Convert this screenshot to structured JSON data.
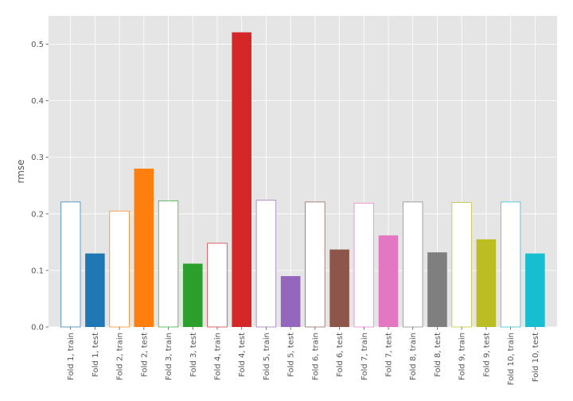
{
  "chart_data": {
    "type": "bar",
    "ylabel": "rmse",
    "xlabel": "",
    "ylim": [
      0,
      0.55
    ],
    "grid": true,
    "yticks": [
      "0.0",
      "0.1",
      "0.2",
      "0.3",
      "0.4",
      "0.5"
    ],
    "categories": [
      "Fold 1, train",
      "Fold 1, test",
      "Fold 2, train",
      "Fold 2, test",
      "Fold 3, train",
      "Fold 3, test",
      "Fold 4, train",
      "Fold 4, test",
      "Fold 5, train",
      "Fold 5, test",
      "Fold 6, train",
      "Fold 6, test",
      "Fold 7, train",
      "Fold 7, test",
      "Fold 8, train",
      "Fold 8, test",
      "Fold 9, train",
      "Fold 9, test",
      "Fold 10, train",
      "Fold 10, test"
    ],
    "values": [
      0.221,
      0.13,
      0.205,
      0.28,
      0.223,
      0.112,
      0.148,
      0.521,
      0.224,
      0.09,
      0.221,
      0.137,
      0.219,
      0.162,
      0.221,
      0.132,
      0.22,
      0.155,
      0.221,
      0.13
    ],
    "fold_colors": [
      "#1f77b4",
      "#ff7f0e",
      "#2ca02c",
      "#d62728",
      "#9467bd",
      "#8c564b",
      "#e377c2",
      "#7f7f7f",
      "#bcbd22",
      "#17becf"
    ],
    "style": {
      "train": "white fill with fold-colored outline",
      "test": "solid fold-colored fill"
    },
    "background_color": "#e5e5e5",
    "grid_color": "#ffffff",
    "text_color": "#555555"
  }
}
